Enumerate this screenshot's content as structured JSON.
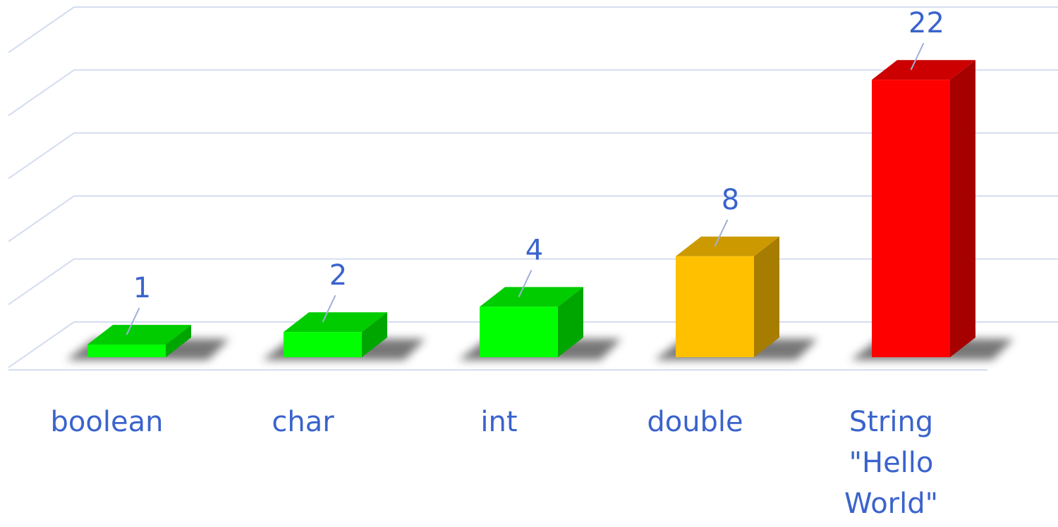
{
  "chart_data": {
    "type": "bar3d",
    "categories": [
      "boolean",
      "char",
      "int",
      "double",
      "String \"Hello World\""
    ],
    "values": [
      1,
      2,
      4,
      8,
      22
    ],
    "colors": [
      "#00ff00",
      "#00ff00",
      "#00ff00",
      "#ffc000",
      "#ff0000"
    ],
    "ylim": [
      0,
      25
    ],
    "yticks": [
      0,
      5,
      10,
      15,
      20,
      25
    ],
    "grid": true
  }
}
